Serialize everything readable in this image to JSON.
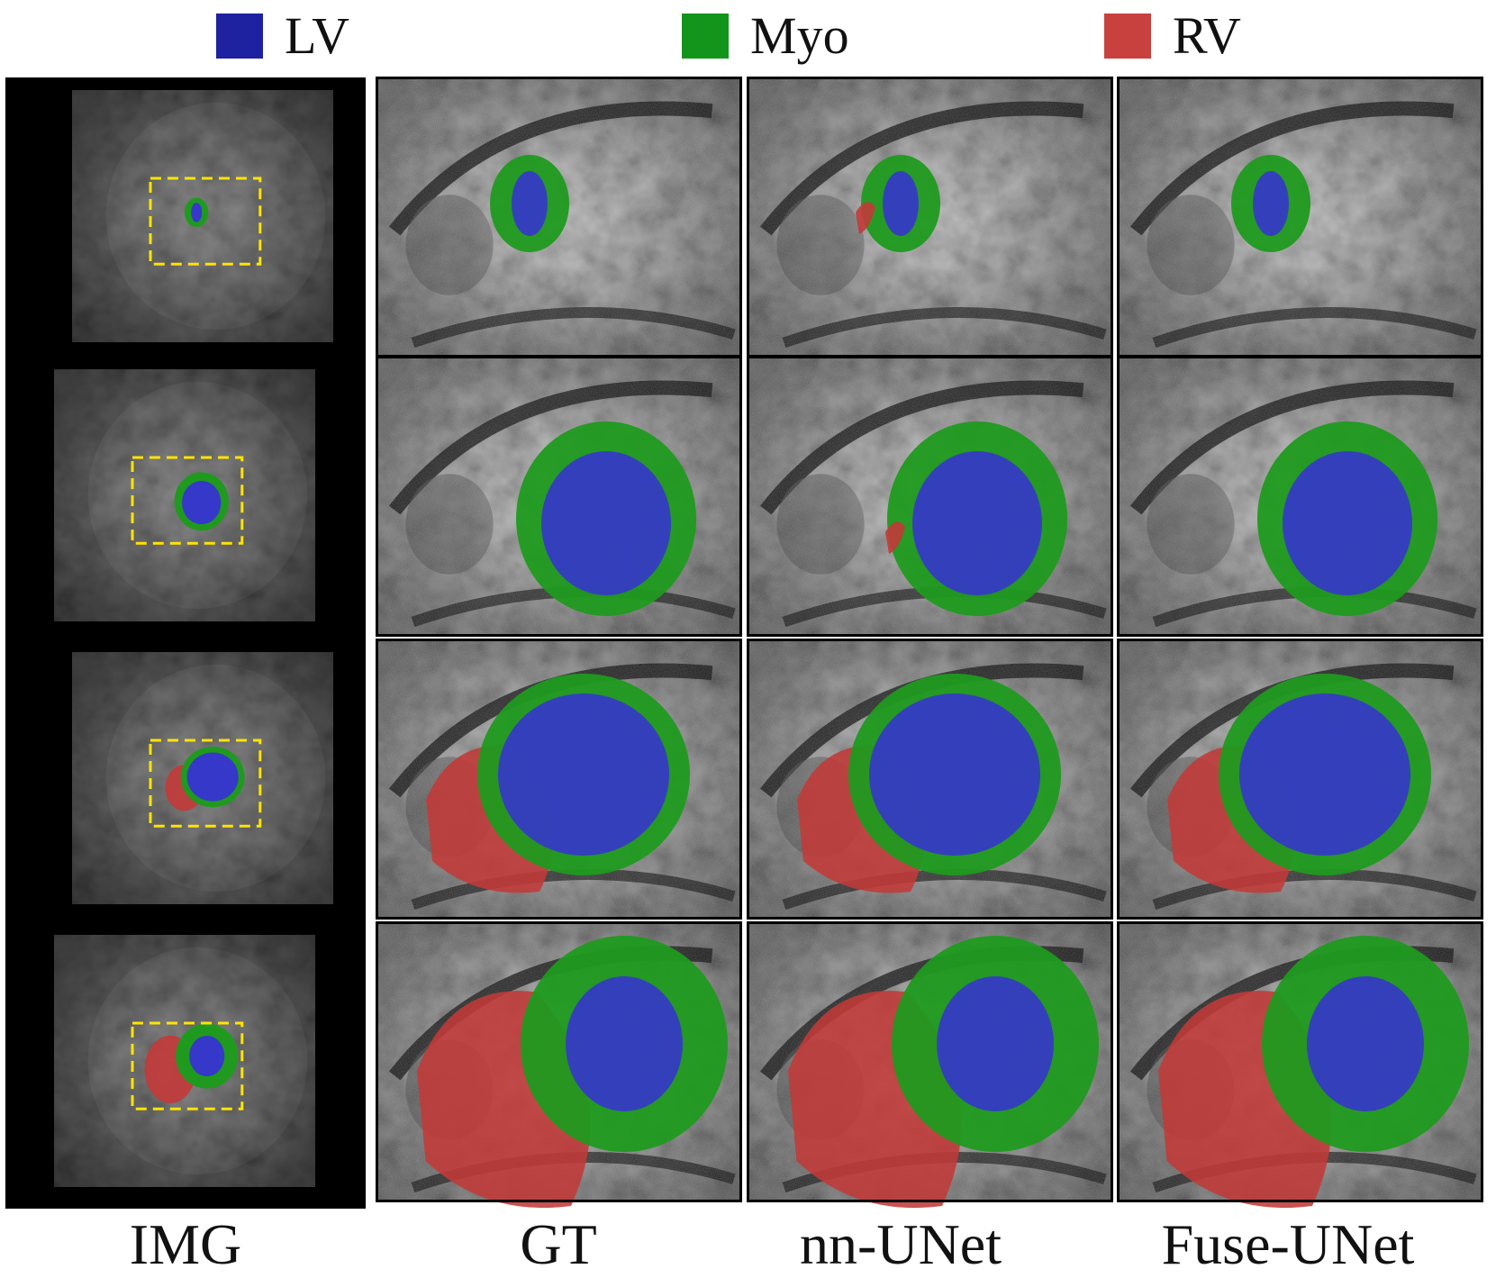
{
  "legend": [
    {
      "label": "LV",
      "color": "#1e22a0"
    },
    {
      "label": "Myo",
      "color": "#13941b"
    },
    {
      "label": "RV",
      "color": "#c8413e"
    }
  ],
  "columns": [
    "IMG",
    "GT",
    "nn-UNet",
    "Fuse-UNet"
  ],
  "colors": {
    "lv": "#3538c8",
    "myo": "#1f9a1f",
    "rv": "#c23a38",
    "box": "#ffe400",
    "frame": "#000000"
  },
  "rows": [
    {
      "gt_rv": false,
      "nn_rv_fp": true,
      "fuse_rv": false
    },
    {
      "gt_rv": false,
      "nn_rv_fp": true,
      "fuse_rv": false
    },
    {
      "gt_rv": true,
      "nn_rv_fp": false,
      "fuse_rv": true
    },
    {
      "gt_rv": true,
      "nn_rv_fp": false,
      "fuse_rv": true
    }
  ]
}
